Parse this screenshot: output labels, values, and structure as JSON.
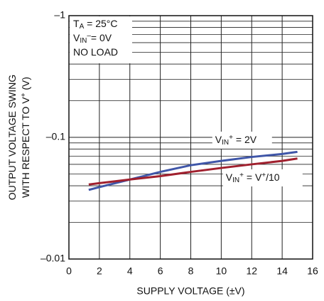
{
  "chart_data": {
    "type": "line",
    "y_label_lines": [
      [
        {
          "t": "OUTPUT VOLTAGE SWING"
        }
      ],
      [
        {
          "t": "WITH RESPECT TO V"
        },
        {
          "t": "+",
          "s": "sup"
        },
        {
          "t": " (V)"
        }
      ]
    ],
    "x_label": "SUPPLY VOLTAGE (±V)",
    "x": [
      1.3,
      2,
      4,
      6,
      8,
      10,
      12,
      14,
      15
    ],
    "series": [
      {
        "color": "#3f56a8",
        "values": [
          -0.037,
          -0.039,
          -0.045,
          -0.052,
          -0.059,
          -0.064,
          -0.069,
          -0.073,
          -0.076
        ],
        "label": [
          {
            "t": "V"
          },
          {
            "t": "IN",
            "s": "sub"
          },
          {
            "t": "+",
            "s": "sup"
          },
          {
            "t": " = 2V"
          }
        ]
      },
      {
        "color": "#a0202e",
        "values": [
          -0.041,
          -0.042,
          -0.045,
          -0.048,
          -0.052,
          -0.056,
          -0.06,
          -0.064,
          -0.067
        ],
        "label": [
          {
            "t": "V"
          },
          {
            "t": "IN",
            "s": "sub"
          },
          {
            "t": "+",
            "s": "sup"
          },
          {
            "t": " = V"
          },
          {
            "t": "+",
            "s": "sup"
          },
          {
            "t": "/10"
          }
        ]
      }
    ],
    "conditions": [
      [
        {
          "t": "T"
        },
        {
          "t": "A",
          "s": "sub"
        },
        {
          "t": " = 25°C"
        }
      ],
      [
        {
          "t": "V"
        },
        {
          "t": "IN",
          "s": "sub"
        },
        {
          "t": "–",
          "s": "sup"
        },
        {
          "t": "= 0V"
        }
      ],
      [
        {
          "t": "NO LOAD"
        }
      ]
    ],
    "xlim": [
      0,
      16
    ],
    "xticks": [
      0,
      2,
      4,
      6,
      8,
      10,
      12,
      14,
      16
    ],
    "ylim": [
      -1,
      -0.01
    ],
    "log_y": true,
    "yticks": [
      {
        "value": -1,
        "label": "–1"
      },
      {
        "value": -0.1,
        "label": "–0.1"
      },
      {
        "value": -0.01,
        "label": "–0.01"
      }
    ],
    "grid": true,
    "minor_grid": true
  }
}
